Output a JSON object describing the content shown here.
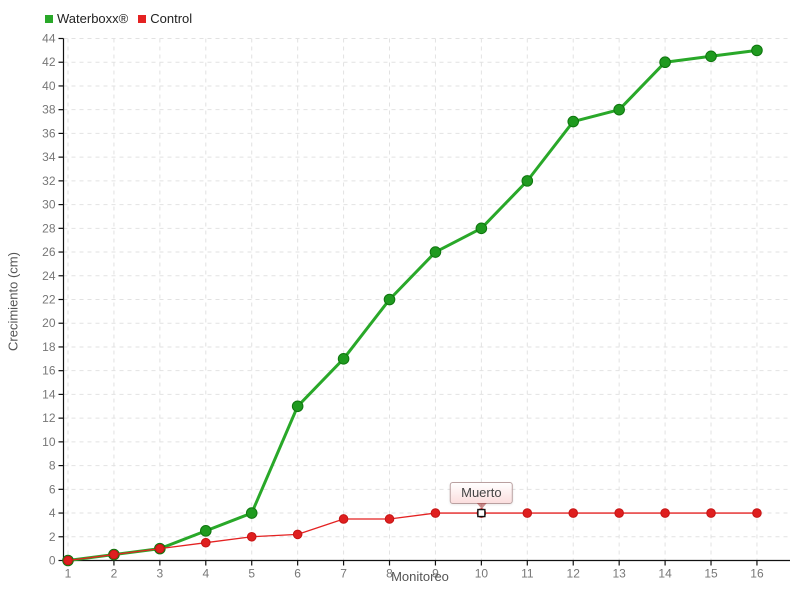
{
  "chart_data": {
    "type": "line",
    "title": "",
    "xlabel": "Monitoreo",
    "ylabel": "Crecimiento (cm)",
    "xlim": [
      1,
      16
    ],
    "ylim": [
      0,
      44
    ],
    "x_tick_step": 1,
    "y_tick_step": 2,
    "grid": true,
    "legend_position": "top-left",
    "x": [
      1,
      2,
      3,
      4,
      5,
      6,
      7,
      8,
      9,
      10,
      11,
      12,
      13,
      14,
      15,
      16
    ],
    "series": [
      {
        "name": "Waterboxx®",
        "color": "#29a829",
        "marker_color": "#1f9a1f",
        "marker_edge": "#0e760e",
        "line_width": 3,
        "marker_radius": 5.3,
        "values": [
          0,
          0.5,
          1,
          2.5,
          4,
          13,
          17,
          22,
          26,
          28,
          32,
          37,
          38,
          42,
          42.5,
          43
        ]
      },
      {
        "name": "Control",
        "color": "#e42222",
        "marker_color": "#df1f1f",
        "marker_edge": "#c51515",
        "line_width": 1.3,
        "marker_radius": 4.3,
        "values": [
          0,
          0.5,
          1,
          1.5,
          2,
          2.2,
          3.5,
          3.5,
          4,
          4,
          4,
          4,
          4,
          4,
          4,
          4
        ]
      }
    ],
    "annotation": {
      "text": "Muerto",
      "series": "Control",
      "x": 10,
      "y": 4
    }
  },
  "style": {
    "grid_color": "#e2e2e2",
    "axis_color": "#111111",
    "tick_label_color": "#777777",
    "axis_title_color": "#555555"
  }
}
